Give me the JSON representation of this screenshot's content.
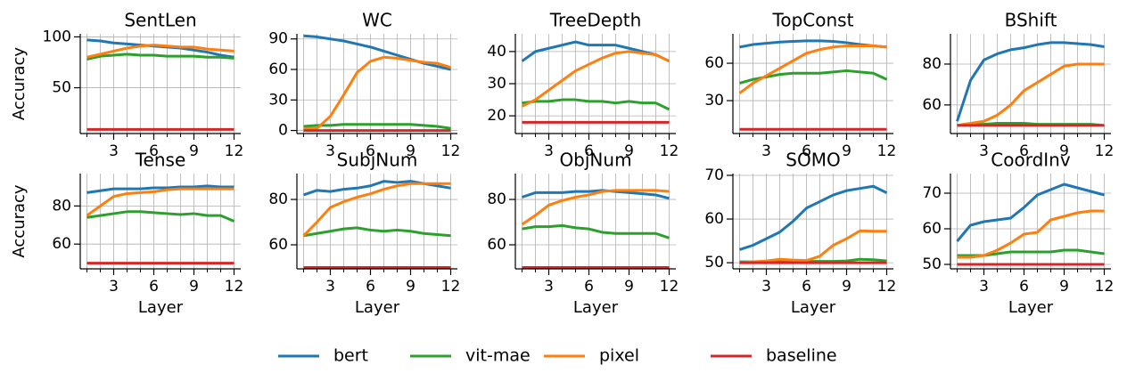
{
  "chart_data": [
    {
      "type": "line",
      "title": "SentLen",
      "ylabel": "Accuracy",
      "x": [
        1,
        2,
        3,
        4,
        5,
        6,
        7,
        8,
        9,
        10,
        11,
        12
      ],
      "xlim": [
        0.5,
        12.5
      ],
      "xticks": [
        3,
        6,
        9,
        12
      ],
      "ylim": [
        5,
        103
      ],
      "yticks": [
        50,
        100
      ],
      "grid": true,
      "series": [
        {
          "name": "bert",
          "color": "#1f77b4",
          "values": [
            97,
            96,
            94,
            93,
            92,
            91,
            90,
            89,
            87,
            85,
            82,
            80
          ]
        },
        {
          "name": "vit-mae",
          "color": "#2ca02c",
          "values": [
            78,
            81,
            82,
            83,
            82,
            82,
            81,
            81,
            81,
            80,
            80,
            79
          ]
        },
        {
          "name": "pixel",
          "color": "#ff7f0e",
          "values": [
            80,
            83,
            86,
            89,
            91,
            92,
            91,
            90,
            90,
            88,
            87,
            86
          ]
        },
        {
          "name": "baseline",
          "color": "#d62728",
          "values": [
            9,
            9,
            9,
            9,
            9,
            9,
            9,
            9,
            9,
            9,
            9,
            9
          ]
        }
      ]
    },
    {
      "type": "line",
      "title": "WC",
      "x": [
        1,
        2,
        3,
        4,
        5,
        6,
        7,
        8,
        9,
        10,
        11,
        12
      ],
      "xlim": [
        0.5,
        12.5
      ],
      "xticks": [
        3,
        6,
        9,
        12
      ],
      "ylim": [
        -3,
        95
      ],
      "yticks": [
        0,
        30,
        60,
        90
      ],
      "grid": true,
      "series": [
        {
          "name": "bert",
          "color": "#1f77b4",
          "values": [
            93,
            92,
            90,
            88,
            85,
            82,
            78,
            74,
            70,
            66,
            63,
            60
          ]
        },
        {
          "name": "vit-mae",
          "color": "#2ca02c",
          "values": [
            4,
            5,
            5,
            6,
            6,
            6,
            6,
            6,
            6,
            5,
            4,
            2
          ]
        },
        {
          "name": "pixel",
          "color": "#ff7f0e",
          "values": [
            2,
            2,
            14,
            35,
            57,
            68,
            72,
            71,
            69,
            67,
            66,
            62
          ]
        },
        {
          "name": "baseline",
          "color": "#d62728",
          "values": [
            0,
            0,
            0,
            0,
            0,
            0,
            0,
            0,
            0,
            0,
            0,
            0
          ]
        }
      ]
    },
    {
      "type": "line",
      "title": "TreeDepth",
      "x": [
        1,
        2,
        3,
        4,
        5,
        6,
        7,
        8,
        9,
        10,
        11,
        12
      ],
      "xlim": [
        0.5,
        12.5
      ],
      "xticks": [
        3,
        6,
        9,
        12
      ],
      "ylim": [
        14.5,
        45.5
      ],
      "yticks": [
        20,
        30,
        40
      ],
      "grid": true,
      "series": [
        {
          "name": "bert",
          "color": "#1f77b4",
          "values": [
            37,
            40,
            41,
            42,
            43,
            42,
            42,
            42,
            41,
            40,
            39,
            37
          ]
        },
        {
          "name": "vit-mae",
          "color": "#2ca02c",
          "values": [
            24,
            24.5,
            24.5,
            25,
            25,
            24.5,
            24.5,
            24,
            24.5,
            24,
            24,
            22
          ]
        },
        {
          "name": "pixel",
          "color": "#ff7f0e",
          "values": [
            23,
            25,
            28,
            31,
            34,
            36,
            38,
            39.5,
            40,
            39.5,
            39,
            37
          ]
        },
        {
          "name": "baseline",
          "color": "#d62728",
          "values": [
            18,
            18,
            18,
            18,
            18,
            18,
            18,
            18,
            18,
            18,
            18,
            18
          ]
        }
      ]
    },
    {
      "type": "line",
      "title": "TopConst",
      "x": [
        1,
        2,
        3,
        4,
        5,
        6,
        7,
        8,
        9,
        10,
        11,
        12
      ],
      "xlim": [
        0.5,
        12.5
      ],
      "xticks": [
        3,
        6,
        9,
        12
      ],
      "ylim": [
        3.6,
        83.6
      ],
      "yticks": [
        30,
        60
      ],
      "grid": true,
      "series": [
        {
          "name": "bert",
          "color": "#1f77b4",
          "values": [
            73,
            75,
            76,
            77,
            77.5,
            78,
            78,
            77.5,
            76.5,
            75,
            74,
            73
          ]
        },
        {
          "name": "vit-mae",
          "color": "#2ca02c",
          "values": [
            44,
            47,
            49,
            51,
            52,
            52,
            52,
            53,
            54,
            53,
            52,
            47
          ]
        },
        {
          "name": "pixel",
          "color": "#ff7f0e",
          "values": [
            36,
            44,
            50,
            56,
            62,
            68,
            71,
            73,
            74,
            74,
            74,
            73
          ]
        },
        {
          "name": "baseline",
          "color": "#d62728",
          "values": [
            7,
            7,
            7,
            7,
            7,
            7,
            7,
            7,
            7,
            7,
            7,
            7
          ]
        }
      ]
    },
    {
      "type": "line",
      "title": "BShift",
      "x": [
        1,
        2,
        3,
        4,
        5,
        6,
        7,
        8,
        9,
        10,
        11,
        12
      ],
      "xlim": [
        0.5,
        12.5
      ],
      "xticks": [
        3,
        6,
        9,
        12
      ],
      "ylim": [
        46,
        94.8
      ],
      "yticks": [
        60,
        80
      ],
      "grid": true,
      "series": [
        {
          "name": "bert",
          "color": "#1f77b4",
          "values": [
            52,
            72,
            82,
            85,
            87,
            88,
            89.5,
            90.5,
            90.5,
            90,
            89.5,
            88.5
          ]
        },
        {
          "name": "vit-mae",
          "color": "#2ca02c",
          "values": [
            50,
            50.5,
            50.5,
            51,
            51,
            51,
            50.5,
            50.5,
            50.5,
            50.5,
            50.5,
            50
          ]
        },
        {
          "name": "pixel",
          "color": "#ff7f0e",
          "values": [
            50,
            51,
            52,
            55,
            60,
            67,
            71,
            75,
            79,
            80,
            80,
            80
          ]
        },
        {
          "name": "baseline",
          "color": "#d62728",
          "values": [
            50,
            50,
            50,
            50,
            50,
            50,
            50,
            50,
            50,
            50,
            50,
            50
          ]
        }
      ]
    },
    {
      "type": "line",
      "title": "Tense",
      "ylabel": "Accuracy",
      "xlabel": "Layer",
      "x": [
        1,
        2,
        3,
        4,
        5,
        6,
        7,
        8,
        9,
        10,
        11,
        12
      ],
      "xlim": [
        0.5,
        12.5
      ],
      "xticks": [
        3,
        6,
        9,
        12
      ],
      "ylim": [
        47,
        97
      ],
      "yticks": [
        60,
        80
      ],
      "grid": true,
      "series": [
        {
          "name": "bert",
          "color": "#1f77b4",
          "values": [
            87,
            88,
            89,
            89,
            89,
            89.5,
            89.5,
            90,
            90,
            90.5,
            90,
            90
          ]
        },
        {
          "name": "vit-mae",
          "color": "#2ca02c",
          "values": [
            74,
            75,
            76,
            77,
            77,
            76.5,
            76,
            75.5,
            76,
            75,
            75,
            72
          ]
        },
        {
          "name": "pixel",
          "color": "#ff7f0e",
          "values": [
            75,
            80,
            85,
            86.5,
            87,
            87.5,
            88.5,
            89,
            89,
            89,
            89,
            89
          ]
        },
        {
          "name": "baseline",
          "color": "#d62728",
          "values": [
            50,
            50,
            50,
            50,
            50,
            50,
            50,
            50,
            50,
            50,
            50,
            50
          ]
        }
      ]
    },
    {
      "type": "line",
      "title": "SubjNum",
      "xlabel": "Layer",
      "x": [
        1,
        2,
        3,
        4,
        5,
        6,
        7,
        8,
        9,
        10,
        11,
        12
      ],
      "xlim": [
        0.5,
        12.5
      ],
      "xticks": [
        3,
        6,
        9,
        12
      ],
      "ylim": [
        49.4,
        91.4
      ],
      "yticks": [
        60,
        80
      ],
      "grid": true,
      "series": [
        {
          "name": "bert",
          "color": "#1f77b4",
          "values": [
            82,
            84,
            83.5,
            84.5,
            85,
            86,
            88,
            87.5,
            88,
            87,
            86,
            85
          ]
        },
        {
          "name": "vit-mae",
          "color": "#2ca02c",
          "values": [
            64,
            65,
            66,
            67,
            67.5,
            66.5,
            66,
            66.5,
            66,
            65,
            64.5,
            64
          ]
        },
        {
          "name": "pixel",
          "color": "#ff7f0e",
          "values": [
            64,
            70,
            76.5,
            79,
            81,
            82.5,
            84.5,
            86,
            87,
            87,
            87,
            87
          ]
        },
        {
          "name": "baseline",
          "color": "#d62728",
          "values": [
            50,
            50,
            50,
            50,
            50,
            50,
            50,
            50,
            50,
            50,
            50,
            50
          ]
        }
      ]
    },
    {
      "type": "line",
      "title": "ObjNum",
      "xlabel": "Layer",
      "x": [
        1,
        2,
        3,
        4,
        5,
        6,
        7,
        8,
        9,
        10,
        11,
        12
      ],
      "xlim": [
        0.5,
        12.5
      ],
      "xticks": [
        3,
        6,
        9,
        12
      ],
      "ylim": [
        49.4,
        91.4
      ],
      "yticks": [
        60,
        80
      ],
      "grid": true,
      "series": [
        {
          "name": "bert",
          "color": "#1f77b4",
          "values": [
            81,
            83,
            83,
            83,
            83.5,
            83.5,
            84,
            83.5,
            83,
            82.5,
            82,
            80.5
          ]
        },
        {
          "name": "vit-mae",
          "color": "#2ca02c",
          "values": [
            67,
            68,
            68,
            68.5,
            67.5,
            67,
            65.5,
            65,
            65,
            65,
            65,
            63
          ]
        },
        {
          "name": "pixel",
          "color": "#ff7f0e",
          "values": [
            69,
            73,
            77.5,
            79.5,
            81,
            82,
            83.5,
            84,
            84,
            84,
            84,
            83.5
          ]
        },
        {
          "name": "baseline",
          "color": "#d62728",
          "values": [
            50,
            50,
            50,
            50,
            50,
            50,
            50,
            50,
            50,
            50,
            50,
            50
          ]
        }
      ]
    },
    {
      "type": "line",
      "title": "SOMO",
      "xlabel": "Layer",
      "x": [
        1,
        2,
        3,
        4,
        5,
        6,
        7,
        8,
        9,
        10,
        11,
        12
      ],
      "xlim": [
        0.5,
        12.5
      ],
      "xticks": [
        3,
        6,
        9,
        12
      ],
      "ylim": [
        48.6,
        70.4
      ],
      "yticks": [
        50,
        60,
        70
      ],
      "grid": true,
      "series": [
        {
          "name": "bert",
          "color": "#1f77b4",
          "values": [
            53,
            54,
            55.5,
            57,
            59.5,
            62.5,
            64,
            65.5,
            66.5,
            67,
            67.5,
            66
          ]
        },
        {
          "name": "vit-mae",
          "color": "#2ca02c",
          "values": [
            50.2,
            50.2,
            50.2,
            50.3,
            50.3,
            50.3,
            50.3,
            50.3,
            50.4,
            50.8,
            50.7,
            50.4
          ]
        },
        {
          "name": "pixel",
          "color": "#ff7f0e",
          "values": [
            50,
            50.2,
            50.4,
            50.8,
            50.6,
            50.5,
            51.5,
            54,
            55.5,
            57.3,
            57.2,
            57.2
          ]
        },
        {
          "name": "baseline",
          "color": "#d62728",
          "values": [
            50,
            50,
            50,
            50,
            50,
            50,
            50,
            50,
            50,
            50,
            50,
            50
          ]
        }
      ]
    },
    {
      "type": "line",
      "title": "CoordInv",
      "xlabel": "Layer",
      "x": [
        1,
        2,
        3,
        4,
        5,
        6,
        7,
        8,
        9,
        10,
        11,
        12
      ],
      "xlim": [
        0.5,
        12.5
      ],
      "xticks": [
        3,
        6,
        9,
        12
      ],
      "ylim": [
        48.75,
        75.5
      ],
      "yticks": [
        50,
        60,
        70
      ],
      "grid": true,
      "series": [
        {
          "name": "bert",
          "color": "#1f77b4",
          "values": [
            56.5,
            61,
            62,
            62.5,
            63,
            66,
            69.5,
            71,
            72.5,
            71.5,
            70.5,
            69.5
          ]
        },
        {
          "name": "vit-mae",
          "color": "#2ca02c",
          "values": [
            52.5,
            52.5,
            52.5,
            53,
            53.5,
            53.5,
            53.5,
            53.5,
            54,
            54,
            53.5,
            53
          ]
        },
        {
          "name": "pixel",
          "color": "#ff7f0e",
          "values": [
            52,
            52,
            52.5,
            54,
            56,
            58.5,
            59,
            62.5,
            63.5,
            64.5,
            65,
            65
          ]
        },
        {
          "name": "baseline",
          "color": "#d62728",
          "values": [
            50,
            50,
            50,
            50,
            50,
            50,
            50,
            50,
            50,
            50,
            50,
            50
          ]
        }
      ]
    }
  ]
}
